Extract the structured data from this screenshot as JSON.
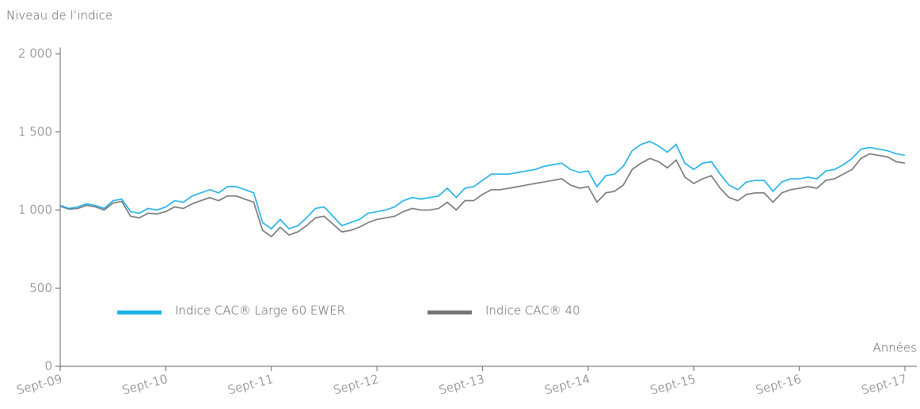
{
  "chart_data": {
    "type": "line",
    "y_axis_label": "Niveau de l’indice",
    "x_axis_label": "Années",
    "x": [
      "2009-09",
      "2009-10",
      "2009-11",
      "2009-12",
      "2010-01",
      "2010-02",
      "2010-03",
      "2010-04",
      "2010-05",
      "2010-06",
      "2010-07",
      "2010-08",
      "2010-09",
      "2010-10",
      "2010-11",
      "2010-12",
      "2011-01",
      "2011-02",
      "2011-03",
      "2011-04",
      "2011-05",
      "2011-06",
      "2011-07",
      "2011-08",
      "2011-09",
      "2011-10",
      "2011-11",
      "2011-12",
      "2012-01",
      "2012-02",
      "2012-03",
      "2012-04",
      "2012-05",
      "2012-06",
      "2012-07",
      "2012-08",
      "2012-09",
      "2012-10",
      "2012-11",
      "2012-12",
      "2013-01",
      "2013-02",
      "2013-03",
      "2013-04",
      "2013-05",
      "2013-06",
      "2013-07",
      "2013-08",
      "2013-09",
      "2013-10",
      "2013-11",
      "2013-12",
      "2014-01",
      "2014-02",
      "2014-03",
      "2014-04",
      "2014-05",
      "2014-06",
      "2014-07",
      "2014-08",
      "2014-09",
      "2014-10",
      "2014-11",
      "2014-12",
      "2015-01",
      "2015-02",
      "2015-03",
      "2015-04",
      "2015-05",
      "2015-06",
      "2015-07",
      "2015-08",
      "2015-09",
      "2015-10",
      "2015-11",
      "2015-12",
      "2016-01",
      "2016-02",
      "2016-03",
      "2016-04",
      "2016-05",
      "2016-06",
      "2016-07",
      "2016-08",
      "2016-09",
      "2016-10",
      "2016-11",
      "2016-12",
      "2017-01",
      "2017-02",
      "2017-03",
      "2017-04",
      "2017-05",
      "2017-06",
      "2017-07",
      "2017-08",
      "2017-09"
    ],
    "series": [
      {
        "name": "Indice CAC® Large 60 EWER",
        "color": "#1ab0e8",
        "values": [
          1030,
          1010,
          1020,
          1040,
          1030,
          1010,
          1060,
          1070,
          990,
          980,
          1010,
          1000,
          1020,
          1060,
          1050,
          1090,
          1110,
          1130,
          1110,
          1150,
          1150,
          1130,
          1110,
          920,
          880,
          940,
          880,
          900,
          950,
          1010,
          1020,
          960,
          900,
          920,
          940,
          980,
          990,
          1000,
          1020,
          1060,
          1080,
          1070,
          1080,
          1090,
          1140,
          1080,
          1140,
          1150,
          1190,
          1230,
          1230,
          1230,
          1240,
          1250,
          1260,
          1280,
          1290,
          1300,
          1260,
          1240,
          1250,
          1150,
          1220,
          1230,
          1280,
          1380,
          1420,
          1440,
          1410,
          1370,
          1420,
          1300,
          1260,
          1300,
          1310,
          1230,
          1160,
          1130,
          1180,
          1190,
          1190,
          1120,
          1180,
          1200,
          1200,
          1210,
          1200,
          1250,
          1260,
          1290,
          1330,
          1390,
          1400,
          1390,
          1380,
          1360,
          1350
        ]
      },
      {
        "name": "Indice CAC® 40",
        "color": "#747474",
        "values": [
          1025,
          1005,
          1010,
          1030,
          1020,
          1000,
          1045,
          1055,
          960,
          950,
          980,
          975,
          990,
          1020,
          1010,
          1040,
          1060,
          1080,
          1060,
          1090,
          1090,
          1070,
          1050,
          870,
          830,
          890,
          840,
          860,
          900,
          950,
          960,
          910,
          860,
          870,
          890,
          920,
          940,
          950,
          960,
          990,
          1010,
          1000,
          1000,
          1010,
          1050,
          1000,
          1060,
          1060,
          1100,
          1130,
          1130,
          1140,
          1150,
          1160,
          1170,
          1180,
          1190,
          1200,
          1160,
          1140,
          1150,
          1050,
          1110,
          1120,
          1160,
          1260,
          1300,
          1330,
          1310,
          1270,
          1320,
          1210,
          1170,
          1200,
          1220,
          1140,
          1080,
          1060,
          1100,
          1110,
          1110,
          1050,
          1110,
          1130,
          1140,
          1150,
          1140,
          1190,
          1200,
          1230,
          1260,
          1330,
          1360,
          1350,
          1340,
          1310,
          1300
        ]
      }
    ],
    "xlim": [
      "2009-09",
      "2017-09"
    ],
    "xticks": [
      {
        "value": "2009-09",
        "label": "Sept-09"
      },
      {
        "value": "2010-09",
        "label": "Sept-10"
      },
      {
        "value": "2011-09",
        "label": "Sept-11"
      },
      {
        "value": "2012-09",
        "label": "Sept-12"
      },
      {
        "value": "2013-09",
        "label": "Sept-13"
      },
      {
        "value": "2014-09",
        "label": "Sept-14"
      },
      {
        "value": "2015-09",
        "label": "Sept-15"
      },
      {
        "value": "2016-09",
        "label": "Sept-16"
      },
      {
        "value": "2017-09",
        "label": "Sept-17"
      }
    ],
    "ylim": [
      0,
      2000
    ],
    "yticks": [
      0,
      500,
      {
        "value": 1000,
        "label": "1 000"
      },
      {
        "value": 1500,
        "label": "1 500"
      },
      {
        "value": 2000,
        "label": "2 000"
      }
    ],
    "grid": false
  }
}
